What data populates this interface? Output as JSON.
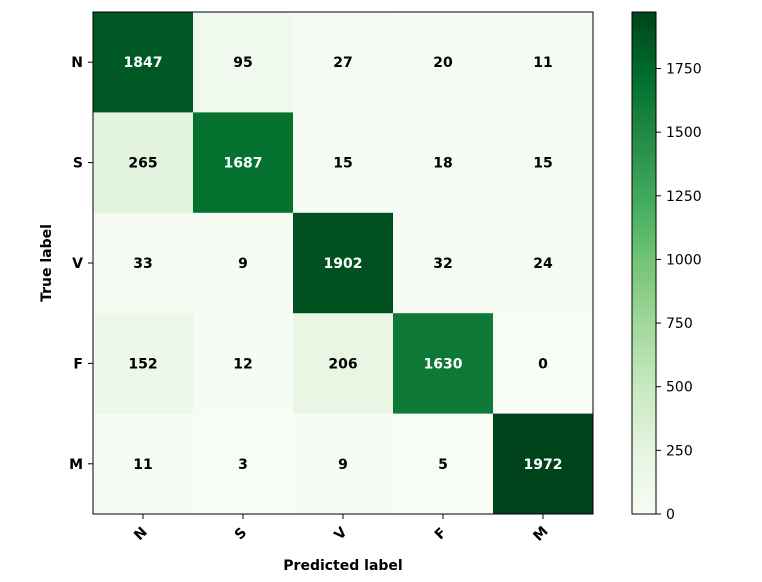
{
  "chart_data": {
    "type": "heatmap",
    "title": "",
    "xlabel": "Predicted label",
    "ylabel": "True label",
    "x_categories": [
      "N",
      "S",
      "V",
      "F",
      "M"
    ],
    "y_categories": [
      "N",
      "S",
      "V",
      "F",
      "M"
    ],
    "values": [
      [
        1847,
        95,
        27,
        20,
        11
      ],
      [
        265,
        1687,
        15,
        18,
        15
      ],
      [
        33,
        9,
        1902,
        32,
        24
      ],
      [
        152,
        12,
        206,
        1630,
        0
      ],
      [
        11,
        3,
        9,
        5,
        1972
      ]
    ],
    "colorbar": {
      "colormap": "Greens",
      "min": 0,
      "max": 1972,
      "ticks": [
        0,
        250,
        500,
        750,
        1000,
        1250,
        1500,
        1750
      ]
    }
  }
}
